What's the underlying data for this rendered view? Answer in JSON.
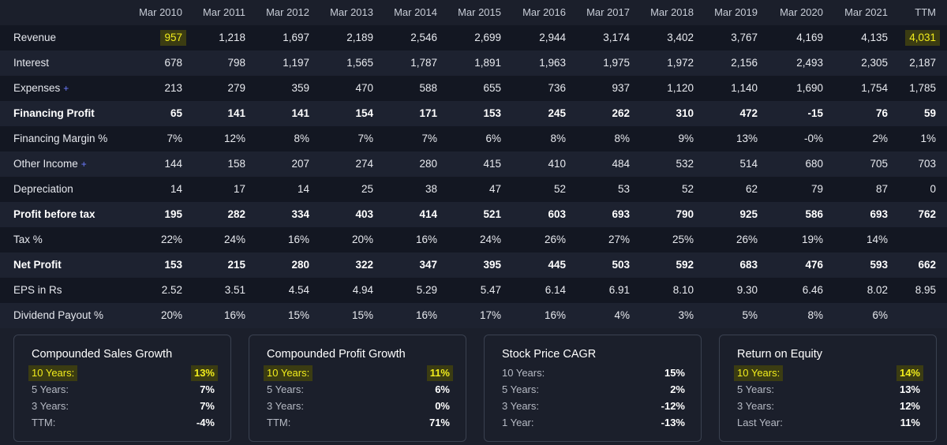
{
  "columns": [
    "Mar 2010",
    "Mar 2011",
    "Mar 2012",
    "Mar 2013",
    "Mar 2014",
    "Mar 2015",
    "Mar 2016",
    "Mar 2017",
    "Mar 2018",
    "Mar 2019",
    "Mar 2020",
    "Mar 2021",
    "TTM"
  ],
  "rows": [
    {
      "label": "Revenue",
      "plus": false,
      "bold": false,
      "values": [
        "957",
        "1,218",
        "1,697",
        "2,189",
        "2,546",
        "2,699",
        "2,944",
        "3,174",
        "3,402",
        "3,767",
        "4,169",
        "4,135",
        "4,031"
      ],
      "highlight": [
        0,
        12
      ]
    },
    {
      "label": "Interest",
      "plus": false,
      "bold": false,
      "values": [
        "678",
        "798",
        "1,197",
        "1,565",
        "1,787",
        "1,891",
        "1,963",
        "1,975",
        "1,972",
        "2,156",
        "2,493",
        "2,305",
        "2,187"
      ]
    },
    {
      "label": "Expenses",
      "plus": true,
      "bold": false,
      "values": [
        "213",
        "279",
        "359",
        "470",
        "588",
        "655",
        "736",
        "937",
        "1,120",
        "1,140",
        "1,690",
        "1,754",
        "1,785"
      ]
    },
    {
      "label": "Financing Profit",
      "plus": false,
      "bold": true,
      "values": [
        "65",
        "141",
        "141",
        "154",
        "171",
        "153",
        "245",
        "262",
        "310",
        "472",
        "-15",
        "76",
        "59"
      ]
    },
    {
      "label": "Financing Margin %",
      "plus": false,
      "bold": false,
      "values": [
        "7%",
        "12%",
        "8%",
        "7%",
        "7%",
        "6%",
        "8%",
        "8%",
        "9%",
        "13%",
        "-0%",
        "2%",
        "1%"
      ]
    },
    {
      "label": "Other Income",
      "plus": true,
      "bold": false,
      "values": [
        "144",
        "158",
        "207",
        "274",
        "280",
        "415",
        "410",
        "484",
        "532",
        "514",
        "680",
        "705",
        "703"
      ]
    },
    {
      "label": "Depreciation",
      "plus": false,
      "bold": false,
      "values": [
        "14",
        "17",
        "14",
        "25",
        "38",
        "47",
        "52",
        "53",
        "52",
        "62",
        "79",
        "87",
        "0"
      ]
    },
    {
      "label": "Profit before tax",
      "plus": false,
      "bold": true,
      "values": [
        "195",
        "282",
        "334",
        "403",
        "414",
        "521",
        "603",
        "693",
        "790",
        "925",
        "586",
        "693",
        "762"
      ]
    },
    {
      "label": "Tax %",
      "plus": false,
      "bold": false,
      "values": [
        "22%",
        "24%",
        "16%",
        "20%",
        "16%",
        "24%",
        "26%",
        "27%",
        "25%",
        "26%",
        "19%",
        "14%",
        ""
      ]
    },
    {
      "label": "Net Profit",
      "plus": false,
      "bold": true,
      "values": [
        "153",
        "215",
        "280",
        "322",
        "347",
        "395",
        "445",
        "503",
        "592",
        "683",
        "476",
        "593",
        "662"
      ]
    },
    {
      "label": "EPS in Rs",
      "plus": false,
      "bold": false,
      "values": [
        "2.52",
        "3.51",
        "4.54",
        "4.94",
        "5.29",
        "5.47",
        "6.14",
        "6.91",
        "8.10",
        "9.30",
        "6.46",
        "8.02",
        "8.95"
      ]
    },
    {
      "label": "Dividend Payout %",
      "plus": false,
      "bold": false,
      "values": [
        "20%",
        "16%",
        "15%",
        "15%",
        "16%",
        "17%",
        "16%",
        "4%",
        "3%",
        "5%",
        "8%",
        "6%",
        ""
      ]
    }
  ],
  "plus_symbol": "+",
  "cards": [
    {
      "title": "Compounded Sales Growth",
      "items": [
        {
          "k": "10 Years:",
          "v": "13%",
          "hl": true
        },
        {
          "k": "5 Years:",
          "v": "7%"
        },
        {
          "k": "3 Years:",
          "v": "7%"
        },
        {
          "k": "TTM:",
          "v": "-4%"
        }
      ]
    },
    {
      "title": "Compounded Profit Growth",
      "items": [
        {
          "k": "10 Years:",
          "v": "11%",
          "hl": true
        },
        {
          "k": "5 Years:",
          "v": "6%"
        },
        {
          "k": "3 Years:",
          "v": "0%"
        },
        {
          "k": "TTM:",
          "v": "71%"
        }
      ]
    },
    {
      "title": "Stock Price CAGR",
      "items": [
        {
          "k": "10 Years:",
          "v": "15%"
        },
        {
          "k": "5 Years:",
          "v": "2%"
        },
        {
          "k": "3 Years:",
          "v": "-12%"
        },
        {
          "k": "1 Year:",
          "v": "-13%"
        }
      ]
    },
    {
      "title": "Return on Equity",
      "items": [
        {
          "k": "10 Years:",
          "v": "14%",
          "hl": true
        },
        {
          "k": "5 Years:",
          "v": "13%"
        },
        {
          "k": "3 Years:",
          "v": "12%"
        },
        {
          "k": "Last Year:",
          "v": "11%"
        }
      ]
    }
  ],
  "colors": {
    "background": "#1b1f2b",
    "row_dark": "#131722",
    "row_light": "#1d2230",
    "highlight_bg": "#3b3c12",
    "highlight_fg": "#f1ec1c",
    "plus": "#6d7cff",
    "border": "#3a4150"
  }
}
